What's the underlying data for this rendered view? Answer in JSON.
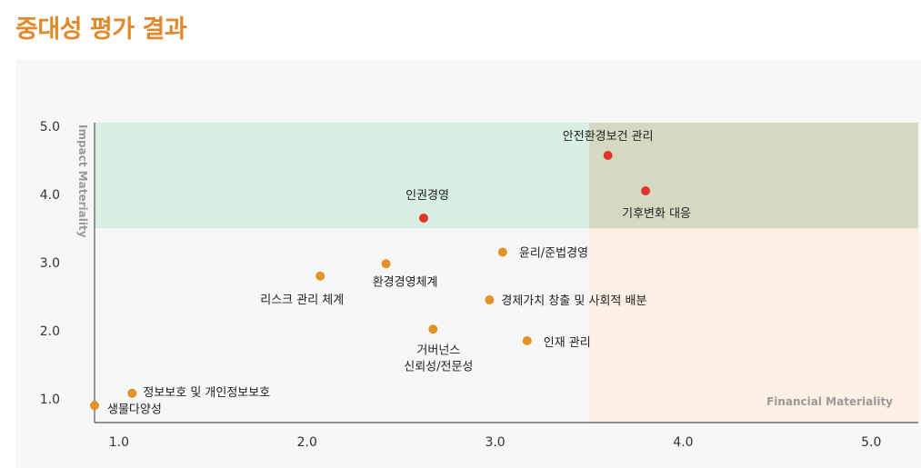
{
  "page": {
    "title": "중대성 평가 결과"
  },
  "colors": {
    "title": "#e0892a",
    "panel_bg": "#f7f7f7",
    "zone_impact": "#d8efe1",
    "zone_financial": "#fcefe3",
    "zone_both": "#d5d9c1",
    "point_high": "#e2342a",
    "point_mid": "#e39228"
  },
  "chart_data": {
    "type": "scatter",
    "xlabel": "Financial Materiality",
    "ylabel": "Impact Materiality",
    "xlim": [
      0.87,
      5.25
    ],
    "ylim": [
      0.65,
      5.05
    ],
    "x_ticks": [
      1.0,
      2.0,
      3.0,
      4.0,
      5.0
    ],
    "y_ticks": [
      1.0,
      2.0,
      3.0,
      4.0,
      5.0
    ],
    "x_tick_labels": [
      "1.0",
      "2.0",
      "3.0",
      "4.0",
      "5.0"
    ],
    "y_tick_labels": [
      "1.0",
      "2.0",
      "3.0",
      "4.0",
      "5.0"
    ],
    "grid": false,
    "zones": {
      "x_threshold": 3.5,
      "y_threshold": 3.5
    },
    "points": [
      {
        "label": "안전환경보건 관리",
        "x": 3.6,
        "y": 4.57,
        "group": "high"
      },
      {
        "label": "기후변화 대응",
        "x": 3.8,
        "y": 4.05,
        "group": "high"
      },
      {
        "label": "인권경영",
        "x": 2.62,
        "y": 3.65,
        "group": "high"
      },
      {
        "label": "윤리/준법경영",
        "x": 3.04,
        "y": 3.15,
        "group": "mid"
      },
      {
        "label": "리스크 관리 체계",
        "x": 2.07,
        "y": 2.8,
        "group": "mid"
      },
      {
        "label": "환경경영체계",
        "x": 2.42,
        "y": 2.98,
        "group": "mid"
      },
      {
        "label": "경제가치 창출 및 사회적 배분",
        "x": 2.97,
        "y": 2.45,
        "group": "mid"
      },
      {
        "label": "거버넌스 신뢰성/전문성",
        "x": 2.67,
        "y": 2.02,
        "group": "mid"
      },
      {
        "label": "인재 관리",
        "x": 3.17,
        "y": 1.85,
        "group": "mid"
      },
      {
        "label": "정보보호 및 개인정보보호",
        "x": 1.07,
        "y": 1.08,
        "group": "mid"
      },
      {
        "label": "생물다양성",
        "x": 0.87,
        "y": 0.9,
        "group": "mid"
      }
    ]
  }
}
